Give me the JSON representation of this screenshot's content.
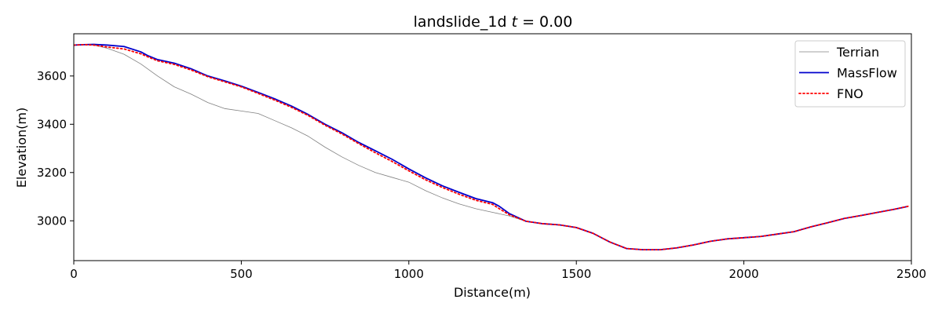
{
  "chart_data": {
    "type": "line",
    "title_prefix": "landslide_1d",
    "title_var": "t",
    "title_suffix": " = 0.00",
    "xlabel": "Distance(m)",
    "ylabel": "Elevation(m)",
    "xlim": [
      0,
      2500
    ],
    "ylim": [
      2835,
      3775
    ],
    "x_ticks": [
      0,
      500,
      1000,
      1500,
      2000,
      2500
    ],
    "y_ticks": [
      3000,
      3200,
      3400,
      3600
    ],
    "grid": false,
    "legend_position": "top-right",
    "series": [
      {
        "name": "Terrian",
        "color": "#808080",
        "style": "solid",
        "width": 0.8,
        "points": [
          [
            0,
            3728
          ],
          [
            30,
            3730
          ],
          [
            60,
            3728
          ],
          [
            100,
            3715
          ],
          [
            150,
            3690
          ],
          [
            200,
            3650
          ],
          [
            250,
            3600
          ],
          [
            300,
            3555
          ],
          [
            350,
            3525
          ],
          [
            400,
            3490
          ],
          [
            450,
            3465
          ],
          [
            500,
            3455
          ],
          [
            550,
            3445
          ],
          [
            600,
            3415
          ],
          [
            650,
            3385
          ],
          [
            700,
            3350
          ],
          [
            750,
            3305
          ],
          [
            800,
            3265
          ],
          [
            850,
            3230
          ],
          [
            900,
            3200
          ],
          [
            950,
            3180
          ],
          [
            1000,
            3160
          ],
          [
            1050,
            3125
          ],
          [
            1100,
            3095
          ],
          [
            1150,
            3070
          ],
          [
            1200,
            3050
          ],
          [
            1250,
            3035
          ],
          [
            1300,
            3020
          ],
          [
            1350,
            2998
          ],
          [
            1400,
            2988
          ],
          [
            1450,
            2983
          ],
          [
            1500,
            2972
          ],
          [
            1550,
            2948
          ],
          [
            1600,
            2912
          ],
          [
            1650,
            2885
          ],
          [
            1700,
            2880
          ],
          [
            1750,
            2880
          ],
          [
            1800,
            2888
          ],
          [
            1850,
            2900
          ],
          [
            1900,
            2915
          ],
          [
            1950,
            2925
          ],
          [
            2000,
            2930
          ],
          [
            2050,
            2935
          ],
          [
            2100,
            2945
          ],
          [
            2150,
            2955
          ],
          [
            2200,
            2975
          ],
          [
            2250,
            2992
          ],
          [
            2300,
            3010
          ],
          [
            2350,
            3022
          ],
          [
            2400,
            3035
          ],
          [
            2450,
            3048
          ],
          [
            2490,
            3060
          ]
        ]
      },
      {
        "name": "MassFlow",
        "color": "#0000cc",
        "style": "solid",
        "width": 1.8,
        "points": [
          [
            0,
            3728
          ],
          [
            30,
            3730
          ],
          [
            60,
            3731
          ],
          [
            100,
            3728
          ],
          [
            150,
            3722
          ],
          [
            200,
            3700
          ],
          [
            220,
            3685
          ],
          [
            250,
            3668
          ],
          [
            300,
            3653
          ],
          [
            350,
            3630
          ],
          [
            400,
            3600
          ],
          [
            450,
            3580
          ],
          [
            500,
            3558
          ],
          [
            550,
            3532
          ],
          [
            600,
            3505
          ],
          [
            650,
            3475
          ],
          [
            700,
            3440
          ],
          [
            750,
            3400
          ],
          [
            800,
            3365
          ],
          [
            850,
            3325
          ],
          [
            900,
            3290
          ],
          [
            950,
            3255
          ],
          [
            1000,
            3215
          ],
          [
            1050,
            3178
          ],
          [
            1100,
            3145
          ],
          [
            1150,
            3118
          ],
          [
            1200,
            3092
          ],
          [
            1250,
            3075
          ],
          [
            1270,
            3060
          ],
          [
            1300,
            3030
          ],
          [
            1350,
            2998
          ],
          [
            1400,
            2988
          ],
          [
            1450,
            2983
          ],
          [
            1500,
            2972
          ],
          [
            1550,
            2948
          ],
          [
            1600,
            2912
          ],
          [
            1650,
            2885
          ],
          [
            1700,
            2880
          ],
          [
            1750,
            2880
          ],
          [
            1800,
            2888
          ],
          [
            1850,
            2900
          ],
          [
            1900,
            2915
          ],
          [
            1950,
            2925
          ],
          [
            2000,
            2930
          ],
          [
            2050,
            2935
          ],
          [
            2100,
            2945
          ],
          [
            2150,
            2955
          ],
          [
            2200,
            2975
          ],
          [
            2250,
            2992
          ],
          [
            2300,
            3010
          ],
          [
            2350,
            3022
          ],
          [
            2400,
            3035
          ],
          [
            2450,
            3048
          ],
          [
            2490,
            3060
          ]
        ]
      },
      {
        "name": "FNO",
        "color": "#ff0000",
        "style": "dotted",
        "width": 1.8,
        "points": [
          [
            0,
            3728
          ],
          [
            30,
            3730
          ],
          [
            60,
            3728
          ],
          [
            100,
            3720
          ],
          [
            150,
            3712
          ],
          [
            200,
            3692
          ],
          [
            220,
            3680
          ],
          [
            250,
            3663
          ],
          [
            300,
            3648
          ],
          [
            350,
            3625
          ],
          [
            400,
            3597
          ],
          [
            450,
            3576
          ],
          [
            500,
            3555
          ],
          [
            550,
            3528
          ],
          [
            600,
            3500
          ],
          [
            650,
            3470
          ],
          [
            700,
            3436
          ],
          [
            750,
            3396
          ],
          [
            800,
            3360
          ],
          [
            850,
            3320
          ],
          [
            900,
            3282
          ],
          [
            950,
            3246
          ],
          [
            1000,
            3207
          ],
          [
            1050,
            3170
          ],
          [
            1100,
            3138
          ],
          [
            1150,
            3110
          ],
          [
            1200,
            3085
          ],
          [
            1250,
            3068
          ],
          [
            1270,
            3050
          ],
          [
            1300,
            3025
          ],
          [
            1350,
            2998
          ],
          [
            1400,
            2988
          ],
          [
            1450,
            2983
          ],
          [
            1500,
            2972
          ],
          [
            1550,
            2948
          ],
          [
            1600,
            2912
          ],
          [
            1650,
            2885
          ],
          [
            1700,
            2880
          ],
          [
            1750,
            2880
          ],
          [
            1800,
            2888
          ],
          [
            1850,
            2900
          ],
          [
            1900,
            2915
          ],
          [
            1950,
            2925
          ],
          [
            2000,
            2930
          ],
          [
            2050,
            2935
          ],
          [
            2100,
            2945
          ],
          [
            2150,
            2955
          ],
          [
            2200,
            2975
          ],
          [
            2250,
            2992
          ],
          [
            2300,
            3010
          ],
          [
            2350,
            3022
          ],
          [
            2400,
            3035
          ],
          [
            2450,
            3048
          ],
          [
            2490,
            3060
          ]
        ]
      }
    ]
  }
}
